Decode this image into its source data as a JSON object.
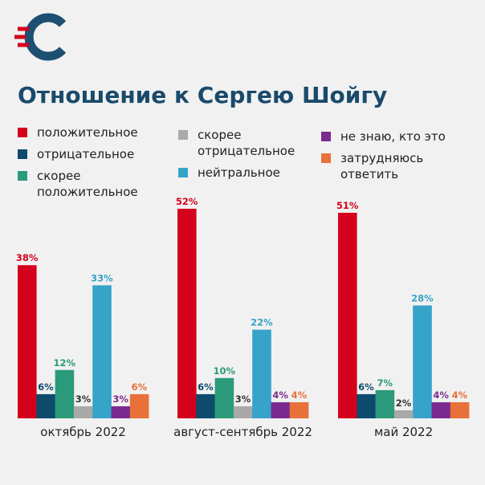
{
  "chart_data": {
    "type": "bar",
    "title": "Отношение к Сергею Шойгу",
    "categories": [
      "октябрь 2022",
      "август-сентябрь 2022",
      "май 2022"
    ],
    "series": [
      {
        "name": "положительное",
        "color": "#d5001c",
        "values": [
          38,
          52,
          51
        ],
        "value_labels": [
          "38%",
          "52%",
          "51%"
        ]
      },
      {
        "name": "отрицательное",
        "color": "#0e4a6c",
        "values": [
          6,
          6,
          6
        ],
        "value_labels": [
          "6%",
          "6%",
          "6%"
        ]
      },
      {
        "name": "скорее положительное",
        "color": "#2a9a7b",
        "values": [
          12,
          10,
          7
        ],
        "value_labels": [
          "12%",
          "10%",
          "7%"
        ]
      },
      {
        "name": "скорее отрицательное",
        "color": "#a9a9a9",
        "label_color": "#333333",
        "values": [
          3,
          3,
          2
        ],
        "value_labels": [
          "3%",
          "3%",
          "2%"
        ]
      },
      {
        "name": "нейтральное",
        "color": "#36a3c9",
        "values": [
          33,
          22,
          28
        ],
        "value_labels": [
          "33%",
          "22%",
          "28%"
        ]
      },
      {
        "name": "не знаю, кто это",
        "color": "#7b2b8f",
        "values": [
          3,
          4,
          4
        ],
        "value_labels": [
          "3%",
          "4%",
          "4%"
        ]
      },
      {
        "name": "затрудняюсь ответить",
        "color": "#e8713a",
        "values": [
          6,
          4,
          4
        ],
        "value_labels": [
          "6%",
          "4%",
          "4%"
        ]
      }
    ]
  }
}
